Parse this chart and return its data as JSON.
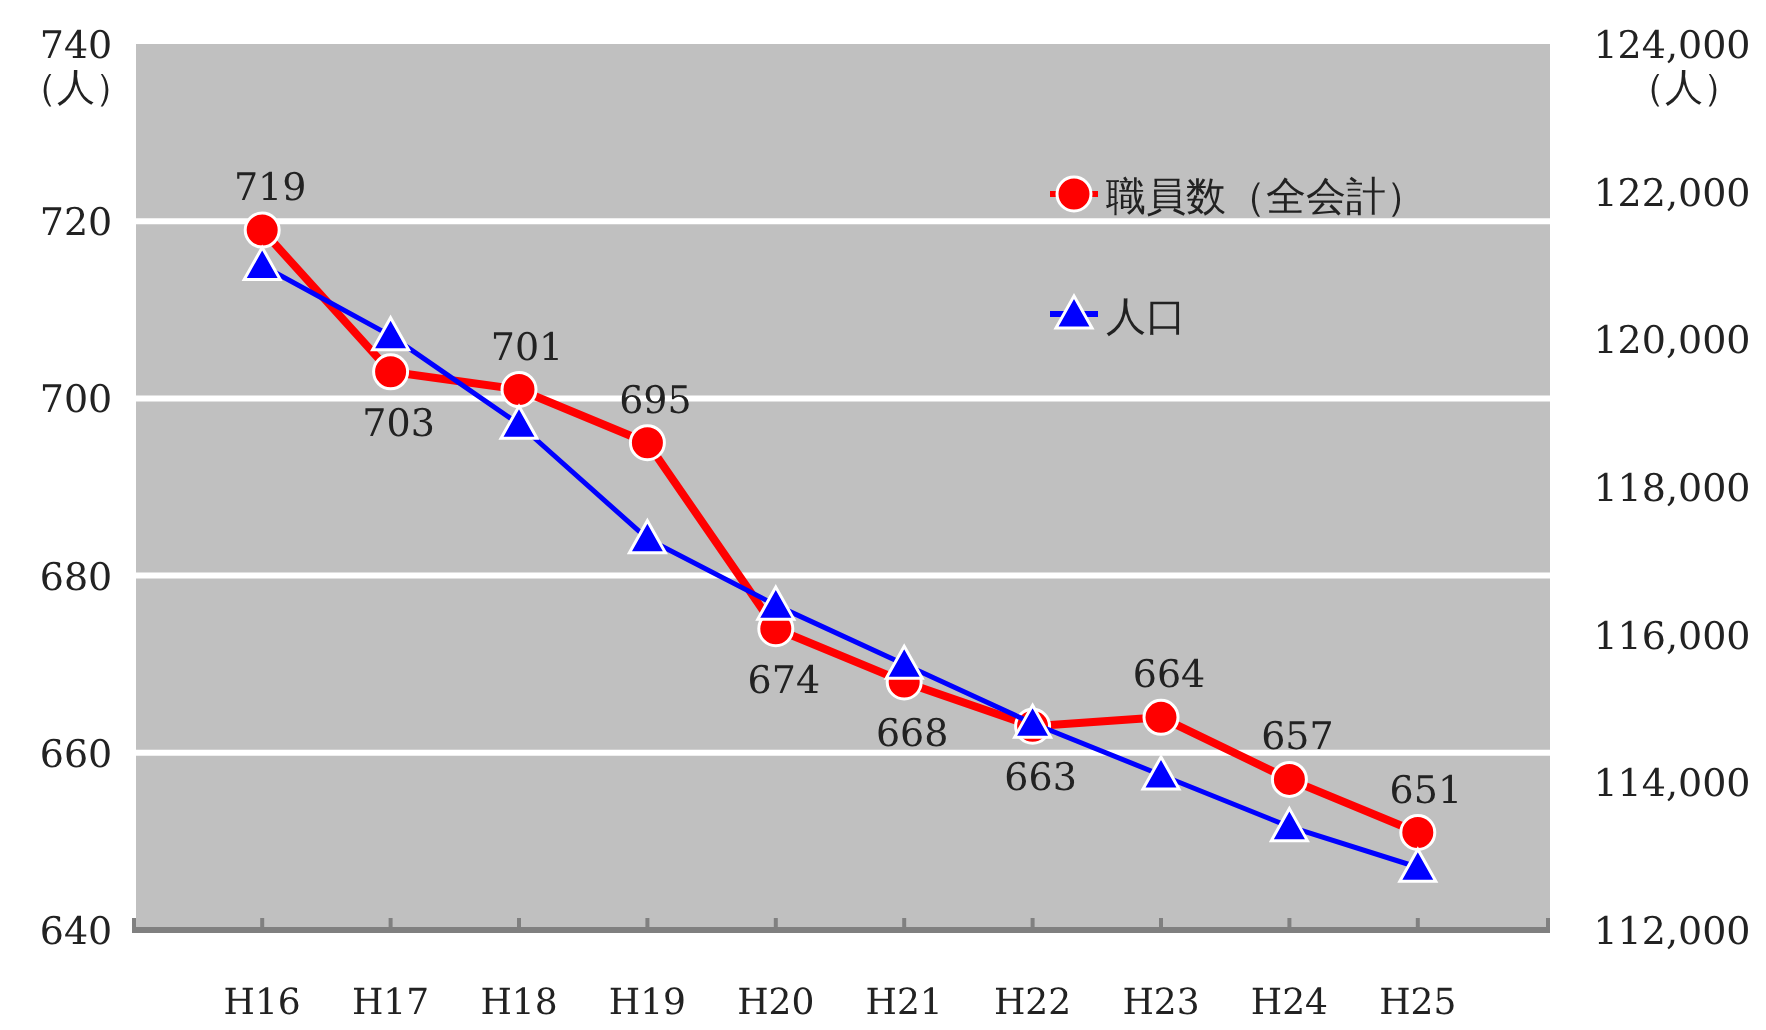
{
  "chart_data": {
    "type": "line",
    "categories": [
      "H16",
      "H17",
      "H18",
      "H19",
      "H20",
      "H21",
      "H22",
      "H23",
      "H24",
      "H25"
    ],
    "ylabel": "（人）",
    "y2label": "（人）",
    "ylim": [
      640,
      740
    ],
    "yticks": [
      640,
      660,
      680,
      700,
      720,
      740
    ],
    "y2lim": [
      112000,
      124000
    ],
    "y2ticks": [
      {
        "value": 112000,
        "label": "112,000"
      },
      {
        "value": 114000,
        "label": "114,000"
      },
      {
        "value": 116000,
        "label": "116,000"
      },
      {
        "value": 118000,
        "label": "118,000"
      },
      {
        "value": 120000,
        "label": "120,000"
      },
      {
        "value": 122000,
        "label": "122,000"
      },
      {
        "value": 124000,
        "label": "124,000"
      }
    ],
    "grid": "y",
    "legend": "top right",
    "line_style": "solid",
    "series": [
      {
        "name": "職員数（全会計）",
        "color": "#ff0000",
        "marker": "circle",
        "data_labels": true,
        "values": [
          719,
          703,
          701,
          695,
          674,
          668,
          663,
          664,
          657,
          651
        ]
      },
      {
        "name": "人口",
        "color": "#0000ff",
        "marker": "triangle",
        "axis": "y2",
        "values": [
          121000,
          120050,
          118850,
          117300,
          116400,
          115600,
          114800,
          114100,
          113400,
          112850
        ]
      }
    ]
  }
}
